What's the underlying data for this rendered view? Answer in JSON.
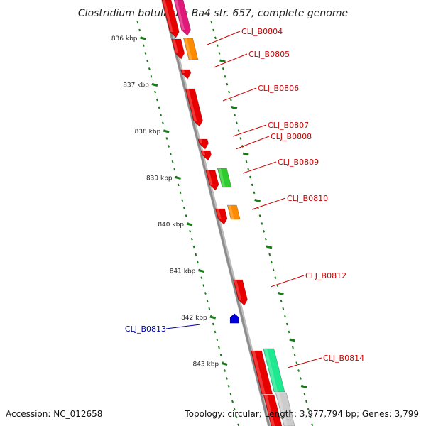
{
  "title": "Clostridium botulinum Ba4 str. 657, complete genome",
  "footer": {
    "accession": "Accession: NC_012658",
    "topology": "Topology: circular; Length: 3,977,794 bp; Genes: 3,799"
  },
  "colors": {
    "backbone": "#8c8c8c",
    "ruler": "#1a7a1a",
    "forward_label": "#cc0000",
    "reverse_label": "#0000aa",
    "gene_red": "#e80000",
    "gene_magenta": "#e0187a",
    "gene_orange": "#ff8c00",
    "gene_green": "#2ecc2e",
    "gene_teal": "#1ee890",
    "gene_blue": "#0000dd"
  },
  "ruler_ticks": [
    {
      "kbp": 836,
      "label": "836 kbp"
    },
    {
      "kbp": 837,
      "label": "837 kbp"
    },
    {
      "kbp": 838,
      "label": "838 kbp"
    },
    {
      "kbp": 839,
      "label": "839 kbp"
    },
    {
      "kbp": 840,
      "label": "840 kbp"
    },
    {
      "kbp": 841,
      "label": "841 kbp"
    },
    {
      "kbp": 842,
      "label": "842 kbp"
    },
    {
      "kbp": 843,
      "label": "843 kbp"
    }
  ],
  "gene_labels": [
    {
      "text": "CLJ_B0804",
      "strand": "forward"
    },
    {
      "text": "CLJ_B0805",
      "strand": "forward"
    },
    {
      "text": "CLJ_B0806",
      "strand": "forward"
    },
    {
      "text": "CLJ_B0807",
      "strand": "forward"
    },
    {
      "text": "CLJ_B0808",
      "strand": "forward"
    },
    {
      "text": "CLJ_B0809",
      "strand": "forward"
    },
    {
      "text": "CLJ_B0810",
      "strand": "forward"
    },
    {
      "text": "CLJ_B0812",
      "strand": "forward"
    },
    {
      "text": "CLJ_B0813",
      "strand": "reverse"
    },
    {
      "text": "CLJ_B0814",
      "strand": "forward"
    }
  ]
}
